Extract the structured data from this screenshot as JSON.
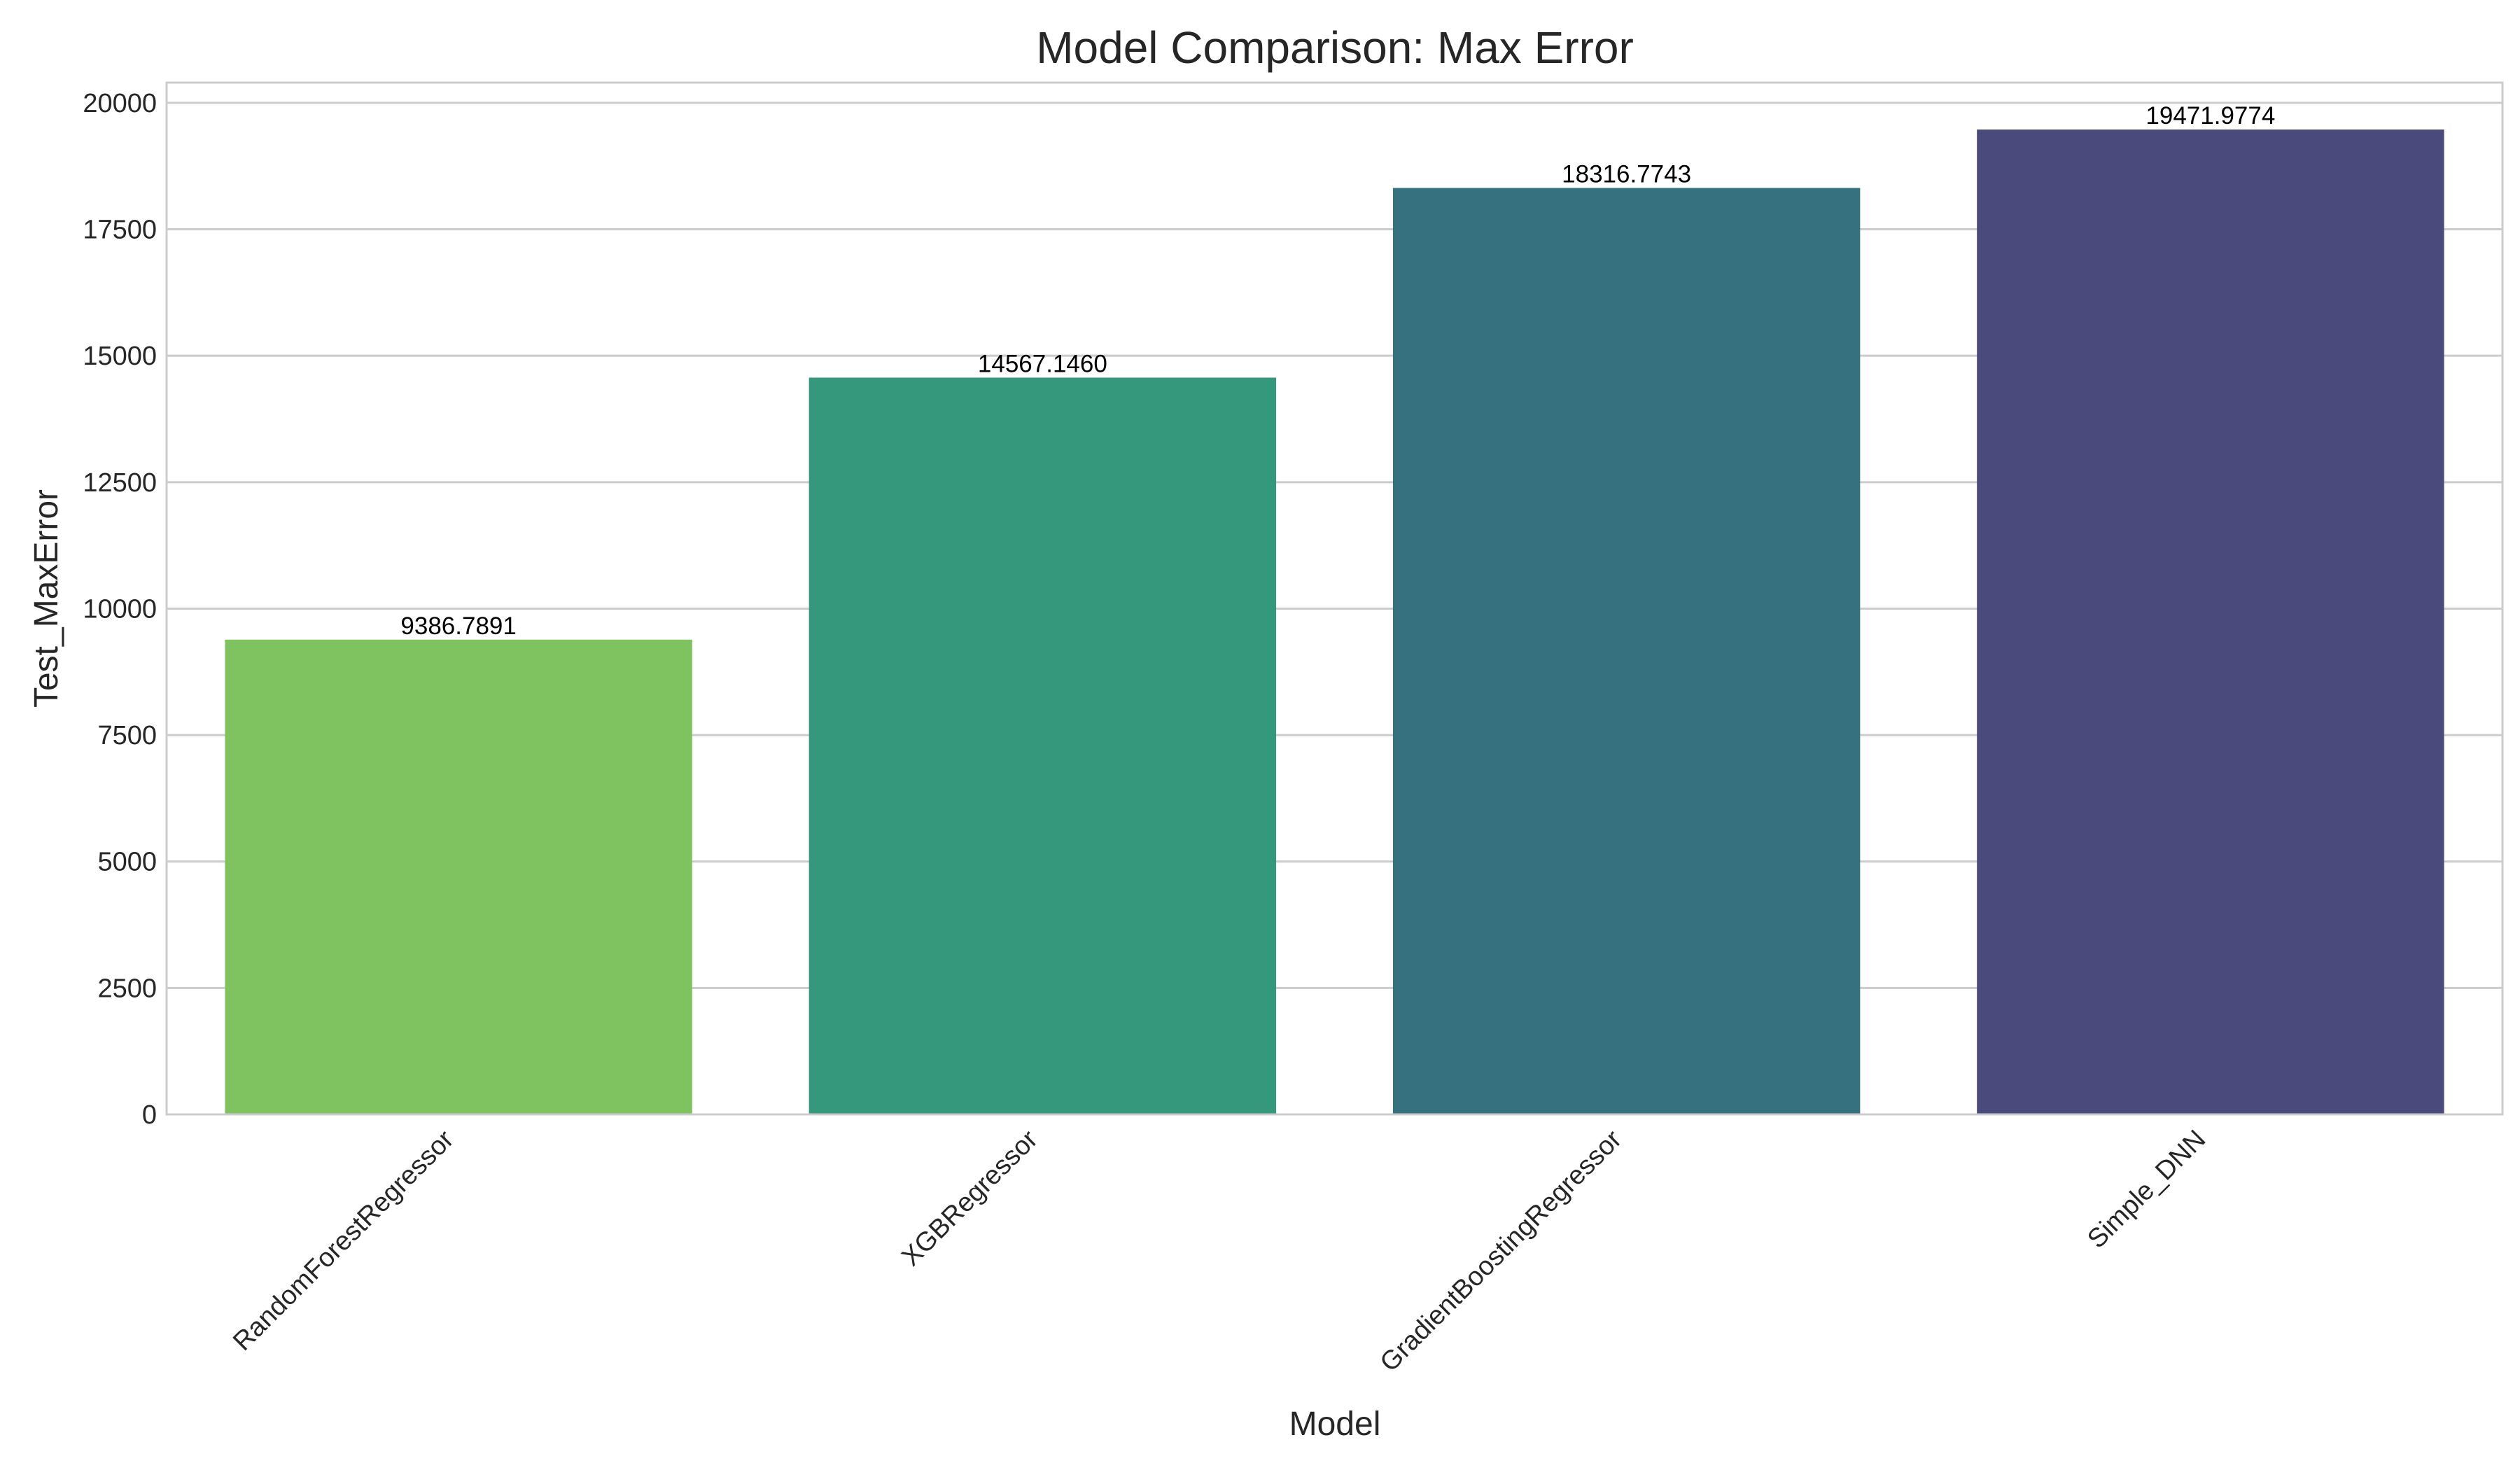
{
  "chart_data": {
    "type": "bar",
    "title": "Model Comparison: Max Error",
    "xlabel": "Model",
    "ylabel": "Test_MaxError",
    "categories": [
      "RandomForestRegressor",
      "XGBRegressor",
      "GradientBoostingRegressor",
      "Simple_DNN"
    ],
    "values": [
      9386.7891,
      14567.146,
      18316.7743,
      19471.9774
    ],
    "value_labels": [
      "9386.7891",
      "14567.1460",
      "18316.7743",
      "19471.9774"
    ],
    "colors": [
      "#7fc260",
      "#35977b",
      "#367180",
      "#4a4b7c"
    ],
    "ylim": [
      0,
      20400
    ],
    "yticks": [
      0,
      2500,
      5000,
      7500,
      10000,
      12500,
      15000,
      17500,
      20000
    ],
    "ytick_labels": [
      "0",
      "2500",
      "5000",
      "7500",
      "10000",
      "12500",
      "15000",
      "17500",
      "20000"
    ],
    "grid": true,
    "legend": "none"
  }
}
